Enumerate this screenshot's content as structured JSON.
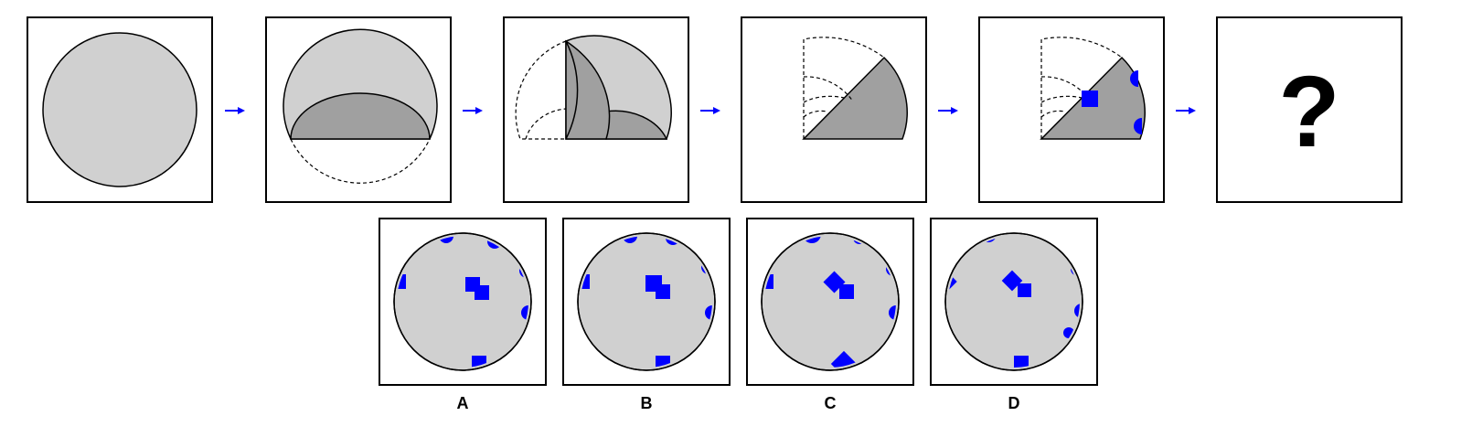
{
  "question": {
    "mark": "?"
  },
  "options": [
    {
      "label": "A"
    },
    {
      "label": "B"
    },
    {
      "label": "C"
    },
    {
      "label": "D"
    }
  ],
  "colors": {
    "light_gray": "#d0d0d0",
    "dark_gray": "#a0a0a0",
    "marker_blue": "#0000ff",
    "arrow_blue": "#0000ff"
  }
}
